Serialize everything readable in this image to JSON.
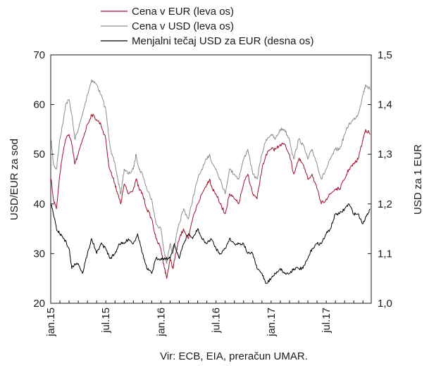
{
  "chart_data": {
    "type": "line",
    "title": "",
    "legend": {
      "placement": "top",
      "entries": [
        {
          "label": "Cena v EUR (leva os)",
          "color": "#a0102a"
        },
        {
          "label": "Cena v USD (leva os)",
          "color": "#8c8c8c"
        },
        {
          "label": "Menjalni tečaj USD za EUR (desna os)",
          "color": "#000000"
        }
      ]
    },
    "y_left": {
      "label": "USD/EUR za sod",
      "lim": [
        20,
        70
      ],
      "ticks": [
        "20",
        "30",
        "40",
        "50",
        "60",
        "70"
      ]
    },
    "y_right": {
      "label": "USD za 1 EUR",
      "lim": [
        1.0,
        1.5
      ],
      "ticks": [
        "1,0",
        "1,1",
        "1,2",
        "1,3",
        "1,4",
        "1,5"
      ]
    },
    "x_axis": {
      "start": "2015-01",
      "end": "2017-11",
      "tick_labels": [
        "jan.15",
        "jul.15",
        "jan.16",
        "jul.16",
        "jan.17",
        "jul.17"
      ]
    },
    "grid": false,
    "source": "Vir: ECB, EIA, preračun UMAR.",
    "series": [
      {
        "name": "Cena v EUR (leva os)",
        "axis": "left",
        "color": "#a0102a",
        "points": [
          [
            "2015-01-02",
            45
          ],
          [
            "2015-01-10",
            41
          ],
          [
            "2015-01-20",
            39
          ],
          [
            "2015-02-01",
            46
          ],
          [
            "2015-02-10",
            50
          ],
          [
            "2015-02-20",
            53
          ],
          [
            "2015-03-01",
            54
          ],
          [
            "2015-03-10",
            52
          ],
          [
            "2015-03-20",
            48
          ],
          [
            "2015-04-01",
            50
          ],
          [
            "2015-04-15",
            53
          ],
          [
            "2015-05-01",
            56
          ],
          [
            "2015-05-15",
            58
          ],
          [
            "2015-06-01",
            57
          ],
          [
            "2015-06-15",
            56
          ],
          [
            "2015-07-01",
            53
          ],
          [
            "2015-07-10",
            48
          ],
          [
            "2015-07-20",
            46
          ],
          [
            "2015-08-01",
            44
          ],
          [
            "2015-08-10",
            42
          ],
          [
            "2015-08-20",
            40
          ],
          [
            "2015-09-01",
            44
          ],
          [
            "2015-09-15",
            42
          ],
          [
            "2015-10-01",
            43
          ],
          [
            "2015-10-10",
            45
          ],
          [
            "2015-10-20",
            43
          ],
          [
            "2015-11-01",
            42
          ],
          [
            "2015-11-15",
            39
          ],
          [
            "2015-12-01",
            37
          ],
          [
            "2015-12-15",
            33
          ],
          [
            "2016-01-01",
            31
          ],
          [
            "2016-01-10",
            28
          ],
          [
            "2016-01-20",
            25
          ],
          [
            "2016-02-01",
            29
          ],
          [
            "2016-02-10",
            27
          ],
          [
            "2016-02-20",
            30
          ],
          [
            "2016-03-01",
            33
          ],
          [
            "2016-03-15",
            35
          ],
          [
            "2016-04-01",
            33
          ],
          [
            "2016-04-15",
            37
          ],
          [
            "2016-05-01",
            40
          ],
          [
            "2016-05-15",
            42
          ],
          [
            "2016-06-01",
            44
          ],
          [
            "2016-06-10",
            45
          ],
          [
            "2016-06-20",
            43
          ],
          [
            "2016-07-01",
            42
          ],
          [
            "2016-07-15",
            40
          ],
          [
            "2016-08-01",
            38
          ],
          [
            "2016-08-15",
            42
          ],
          [
            "2016-09-01",
            41
          ],
          [
            "2016-09-15",
            40
          ],
          [
            "2016-10-01",
            44
          ],
          [
            "2016-10-15",
            46
          ],
          [
            "2016-11-01",
            42
          ],
          [
            "2016-11-15",
            41
          ],
          [
            "2016-12-01",
            47
          ],
          [
            "2016-12-15",
            50
          ],
          [
            "2017-01-01",
            51
          ],
          [
            "2017-01-15",
            51
          ],
          [
            "2017-02-01",
            52
          ],
          [
            "2017-02-15",
            52
          ],
          [
            "2017-03-01",
            50
          ],
          [
            "2017-03-15",
            46
          ],
          [
            "2017-04-01",
            49
          ],
          [
            "2017-04-15",
            48
          ],
          [
            "2017-05-01",
            45
          ],
          [
            "2017-05-15",
            46
          ],
          [
            "2017-06-01",
            43
          ],
          [
            "2017-06-15",
            40
          ],
          [
            "2017-07-01",
            41
          ],
          [
            "2017-07-15",
            42
          ],
          [
            "2017-08-01",
            43
          ],
          [
            "2017-08-15",
            43
          ],
          [
            "2017-09-01",
            45
          ],
          [
            "2017-09-15",
            47
          ],
          [
            "2017-10-01",
            48
          ],
          [
            "2017-10-15",
            49
          ],
          [
            "2017-11-01",
            53
          ],
          [
            "2017-11-10",
            55
          ],
          [
            "2017-11-25",
            54
          ]
        ]
      },
      {
        "name": "Cena v USD (leva os)",
        "axis": "left",
        "color": "#8c8c8c",
        "points": [
          [
            "2015-01-02",
            53
          ],
          [
            "2015-01-10",
            48
          ],
          [
            "2015-01-20",
            47
          ],
          [
            "2015-02-01",
            53
          ],
          [
            "2015-02-10",
            56
          ],
          [
            "2015-02-20",
            60
          ],
          [
            "2015-03-01",
            61
          ],
          [
            "2015-03-10",
            58
          ],
          [
            "2015-03-20",
            53
          ],
          [
            "2015-04-01",
            55
          ],
          [
            "2015-04-15",
            58
          ],
          [
            "2015-05-01",
            62
          ],
          [
            "2015-05-15",
            65
          ],
          [
            "2015-06-01",
            64
          ],
          [
            "2015-06-15",
            62
          ],
          [
            "2015-07-01",
            59
          ],
          [
            "2015-07-10",
            54
          ],
          [
            "2015-07-20",
            50
          ],
          [
            "2015-08-01",
            48
          ],
          [
            "2015-08-10",
            45
          ],
          [
            "2015-08-20",
            42
          ],
          [
            "2015-09-01",
            47
          ],
          [
            "2015-09-15",
            46
          ],
          [
            "2015-10-01",
            47
          ],
          [
            "2015-10-10",
            50
          ],
          [
            "2015-10-20",
            47
          ],
          [
            "2015-11-01",
            46
          ],
          [
            "2015-11-15",
            43
          ],
          [
            "2015-12-01",
            41
          ],
          [
            "2015-12-15",
            36
          ],
          [
            "2016-01-01",
            35
          ],
          [
            "2016-01-10",
            31
          ],
          [
            "2016-01-20",
            28
          ],
          [
            "2016-02-01",
            32
          ],
          [
            "2016-02-10",
            30
          ],
          [
            "2016-02-20",
            33
          ],
          [
            "2016-03-01",
            36
          ],
          [
            "2016-03-15",
            39
          ],
          [
            "2016-04-01",
            37
          ],
          [
            "2016-04-15",
            41
          ],
          [
            "2016-05-01",
            45
          ],
          [
            "2016-05-15",
            47
          ],
          [
            "2016-06-01",
            49
          ],
          [
            "2016-06-10",
            50
          ],
          [
            "2016-06-20",
            48
          ],
          [
            "2016-07-01",
            47
          ],
          [
            "2016-07-15",
            45
          ],
          [
            "2016-08-01",
            42
          ],
          [
            "2016-08-15",
            47
          ],
          [
            "2016-09-01",
            46
          ],
          [
            "2016-09-15",
            45
          ],
          [
            "2016-10-01",
            49
          ],
          [
            "2016-10-15",
            51
          ],
          [
            "2016-11-01",
            46
          ],
          [
            "2016-11-15",
            45
          ],
          [
            "2016-12-01",
            50
          ],
          [
            "2016-12-15",
            53
          ],
          [
            "2017-01-01",
            54
          ],
          [
            "2017-01-15",
            53
          ],
          [
            "2017-02-01",
            55
          ],
          [
            "2017-02-15",
            55
          ],
          [
            "2017-03-01",
            53
          ],
          [
            "2017-03-15",
            49
          ],
          [
            "2017-04-01",
            53
          ],
          [
            "2017-04-15",
            52
          ],
          [
            "2017-05-01",
            49
          ],
          [
            "2017-05-15",
            51
          ],
          [
            "2017-06-01",
            48
          ],
          [
            "2017-06-15",
            45
          ],
          [
            "2017-07-01",
            47
          ],
          [
            "2017-07-15",
            49
          ],
          [
            "2017-08-01",
            51
          ],
          [
            "2017-08-15",
            51
          ],
          [
            "2017-09-01",
            54
          ],
          [
            "2017-09-15",
            56
          ],
          [
            "2017-10-01",
            57
          ],
          [
            "2017-10-15",
            58
          ],
          [
            "2017-11-01",
            62
          ],
          [
            "2017-11-10",
            64
          ],
          [
            "2017-11-25",
            63
          ]
        ]
      },
      {
        "name": "Menjalni tečaj USD za EUR (desna os)",
        "axis": "right",
        "color": "#000000",
        "points": [
          [
            "2015-01-02",
            1.2
          ],
          [
            "2015-01-10",
            1.18
          ],
          [
            "2015-01-20",
            1.15
          ],
          [
            "2015-02-01",
            1.14
          ],
          [
            "2015-02-15",
            1.13
          ],
          [
            "2015-03-01",
            1.11
          ],
          [
            "2015-03-10",
            1.07
          ],
          [
            "2015-03-20",
            1.08
          ],
          [
            "2015-04-01",
            1.08
          ],
          [
            "2015-04-15",
            1.06
          ],
          [
            "2015-05-01",
            1.1
          ],
          [
            "2015-05-15",
            1.13
          ],
          [
            "2015-06-01",
            1.1
          ],
          [
            "2015-06-15",
            1.12
          ],
          [
            "2015-07-01",
            1.11
          ],
          [
            "2015-07-15",
            1.09
          ],
          [
            "2015-08-01",
            1.1
          ],
          [
            "2015-08-15",
            1.12
          ],
          [
            "2015-09-01",
            1.12
          ],
          [
            "2015-09-15",
            1.13
          ],
          [
            "2015-10-01",
            1.12
          ],
          [
            "2015-10-15",
            1.14
          ],
          [
            "2015-11-01",
            1.1
          ],
          [
            "2015-11-15",
            1.07
          ],
          [
            "2015-12-01",
            1.06
          ],
          [
            "2015-12-15",
            1.09
          ],
          [
            "2016-01-01",
            1.09
          ],
          [
            "2016-01-15",
            1.09
          ],
          [
            "2016-02-01",
            1.09
          ],
          [
            "2016-02-15",
            1.12
          ],
          [
            "2016-03-01",
            1.09
          ],
          [
            "2016-03-15",
            1.12
          ],
          [
            "2016-04-01",
            1.14
          ],
          [
            "2016-04-15",
            1.13
          ],
          [
            "2016-05-01",
            1.15
          ],
          [
            "2016-05-15",
            1.13
          ],
          [
            "2016-06-01",
            1.12
          ],
          [
            "2016-06-15",
            1.13
          ],
          [
            "2016-07-01",
            1.11
          ],
          [
            "2016-07-15",
            1.1
          ],
          [
            "2016-08-01",
            1.11
          ],
          [
            "2016-08-15",
            1.13
          ],
          [
            "2016-09-01",
            1.12
          ],
          [
            "2016-09-15",
            1.12
          ],
          [
            "2016-10-01",
            1.12
          ],
          [
            "2016-10-15",
            1.1
          ],
          [
            "2016-11-01",
            1.1
          ],
          [
            "2016-11-15",
            1.07
          ],
          [
            "2016-12-01",
            1.06
          ],
          [
            "2016-12-15",
            1.04
          ],
          [
            "2017-01-01",
            1.05
          ],
          [
            "2017-01-15",
            1.06
          ],
          [
            "2017-02-01",
            1.07
          ],
          [
            "2017-02-15",
            1.06
          ],
          [
            "2017-03-01",
            1.06
          ],
          [
            "2017-03-15",
            1.07
          ],
          [
            "2017-04-01",
            1.07
          ],
          [
            "2017-04-15",
            1.07
          ],
          [
            "2017-05-01",
            1.09
          ],
          [
            "2017-05-15",
            1.11
          ],
          [
            "2017-06-01",
            1.12
          ],
          [
            "2017-06-15",
            1.12
          ],
          [
            "2017-07-01",
            1.14
          ],
          [
            "2017-07-15",
            1.15
          ],
          [
            "2017-08-01",
            1.18
          ],
          [
            "2017-08-15",
            1.18
          ],
          [
            "2017-09-01",
            1.19
          ],
          [
            "2017-09-15",
            1.2
          ],
          [
            "2017-10-01",
            1.18
          ],
          [
            "2017-10-15",
            1.18
          ],
          [
            "2017-11-01",
            1.16
          ],
          [
            "2017-11-15",
            1.18
          ],
          [
            "2017-11-25",
            1.19
          ]
        ]
      }
    ]
  }
}
